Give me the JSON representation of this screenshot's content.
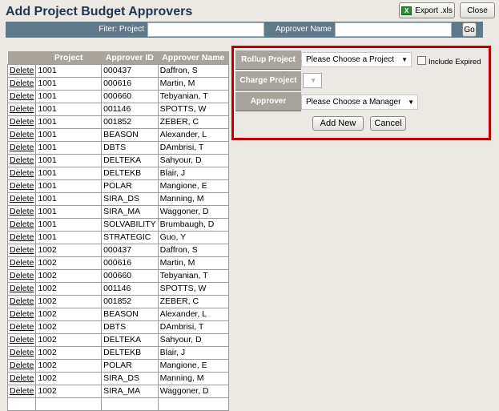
{
  "header": {
    "title": "Add Project Budget Approvers",
    "export_label": "Export .xls",
    "close_label": "Close",
    "excel_icon_text": "X"
  },
  "filter": {
    "project_label": "Fiter: Project",
    "project_value": "",
    "approver_label": "Approver Name",
    "approver_value": "",
    "go_label": "Go"
  },
  "table": {
    "columns": [
      "",
      "Project",
      "Approver ID",
      "Approver Name"
    ],
    "delete_label": "Delete",
    "rows": [
      [
        "1001",
        "000437",
        "Daffron, S"
      ],
      [
        "1001",
        "000616",
        "Martin, M"
      ],
      [
        "1001",
        "000660",
        "Tebyanian, T"
      ],
      [
        "1001",
        "001146",
        "SPOTTS, W"
      ],
      [
        "1001",
        "001852",
        "ZEBER, C"
      ],
      [
        "1001",
        "BEASON",
        "Alexander, L"
      ],
      [
        "1001",
        "DBTS",
        "DAmbrisi, T"
      ],
      [
        "1001",
        "DELTEKA",
        "Sahyour, D"
      ],
      [
        "1001",
        "DELTEKB",
        "Blair, J"
      ],
      [
        "1001",
        "POLAR",
        "Mangione, E"
      ],
      [
        "1001",
        "SIRA_DS",
        "Manning, M"
      ],
      [
        "1001",
        "SIRA_MA",
        "Waggoner, D"
      ],
      [
        "1001",
        "SOLVABILITY",
        "Brumbaugh, D"
      ],
      [
        "1001",
        "STRATEGIC",
        "Guo, Y"
      ],
      [
        "1002",
        "000437",
        "Daffron, S"
      ],
      [
        "1002",
        "000616",
        "Martin, M"
      ],
      [
        "1002",
        "000660",
        "Tebyanian, T"
      ],
      [
        "1002",
        "001146",
        "SPOTTS, W"
      ],
      [
        "1002",
        "001852",
        "ZEBER, C"
      ],
      [
        "1002",
        "BEASON",
        "Alexander, L"
      ],
      [
        "1002",
        "DBTS",
        "DAmbrisi, T"
      ],
      [
        "1002",
        "DELTEKA",
        "Sahyour, D"
      ],
      [
        "1002",
        "DELTEKB",
        "Blair, J"
      ],
      [
        "1002",
        "POLAR",
        "Mangione, E"
      ],
      [
        "1002",
        "SIRA_DS",
        "Manning, M"
      ],
      [
        "1002",
        "SIRA_MA",
        "Waggoner, D"
      ],
      [
        "",
        "",
        ""
      ]
    ]
  },
  "form": {
    "rollup_label": "Rollup Project",
    "rollup_value": "Please Choose a Project",
    "include_expired_label": "Include Expired",
    "include_expired_checked": false,
    "charge_label": "Charge Project",
    "charge_value": "",
    "approver_label": "Approver",
    "approver_value": "Please Choose a Manager",
    "add_label": "Add New",
    "cancel_label": "Cancel",
    "highlight_color": "#c00000"
  }
}
